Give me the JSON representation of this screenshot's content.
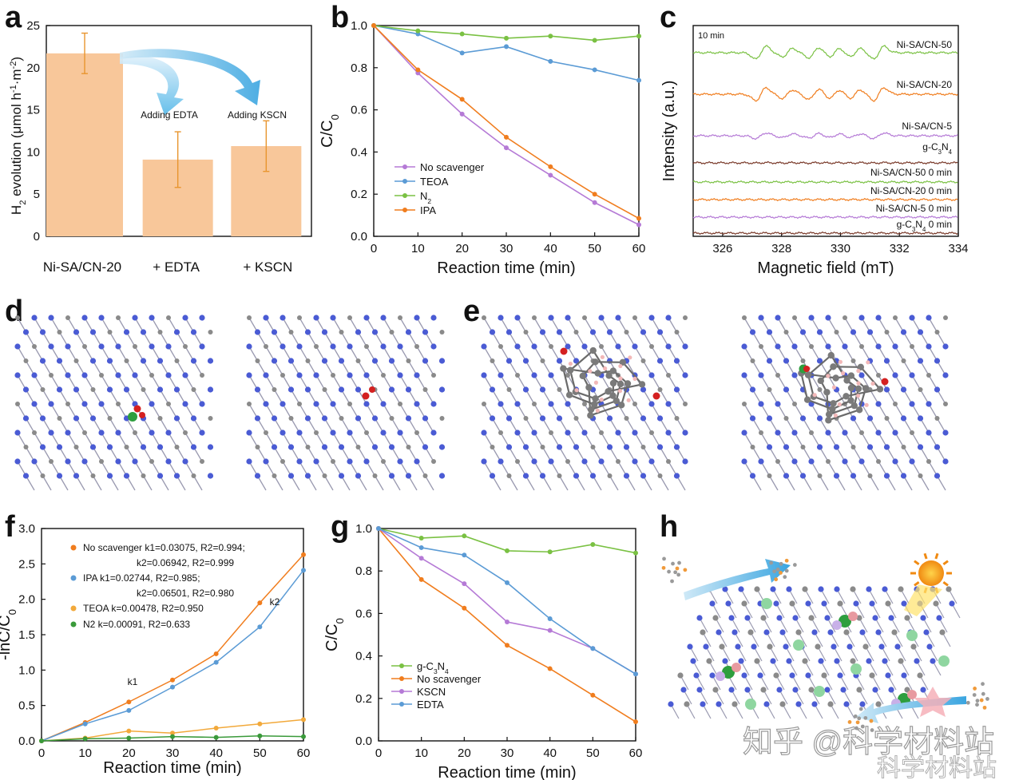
{
  "colors": {
    "bar": "#f8c79a",
    "errorbar": "#e8952e",
    "purple": "#b57ad6",
    "blue": "#5b9bd5",
    "green": "#7ac143",
    "orange": "#f07d1e",
    "gold": "#f2a93b",
    "darkgreen": "#3a9a3a",
    "carbon": "#8a8a8a",
    "nitrogen": "#4a5bd4",
    "oxygen": "#d42020",
    "nickel": "#2e9e3e",
    "hydrogen": "#f2b8b8",
    "brown": "#7a3a2a"
  },
  "panels": {
    "a": "a",
    "b": "b",
    "c": "c",
    "d": "d",
    "e": "e",
    "f": "f",
    "g": "g",
    "h": "h"
  },
  "watermark": {
    "primary": "知乎 @科学材料站",
    "secondary": "科学材料站"
  },
  "icons": [
    "arrow-icon",
    "sun-icon",
    "molecule-icon",
    "lattice-icon"
  ],
  "chart_data": [
    {
      "id": "a",
      "type": "bar",
      "categories": [
        "Ni-SA/CN-20",
        "+ EDTA",
        "+ KSCN"
      ],
      "values": [
        21.7,
        9.1,
        10.7
      ],
      "errors": [
        2.4,
        3.3,
        3.0
      ],
      "ylabel": "H2 evolution (μmol h-1·m-2)",
      "ylabel_main": "H",
      "ylabel_sub": "2",
      "ylabel_rest": " evolution (μmol h",
      "ylabel_sup1": "-1",
      "ylabel_mid": "·m",
      "ylabel_sup2": "-2",
      "ylabel_end": ")",
      "ylim": [
        0,
        25
      ],
      "yticks": [
        0,
        5,
        10,
        15,
        20,
        25
      ],
      "annotations": [
        "Adding EDTA",
        "Adding KSCN"
      ]
    },
    {
      "id": "b",
      "type": "line",
      "x": [
        0,
        10,
        20,
        30,
        40,
        50,
        60
      ],
      "xlabel": "Reaction time (min)",
      "ylabel": "C/C0",
      "ylabel_main": "C/C",
      "ylabel_sub": "0",
      "xlim": [
        0,
        60
      ],
      "ylim": [
        0.0,
        1.0
      ],
      "xticks": [
        0,
        10,
        20,
        30,
        40,
        50,
        60
      ],
      "yticks": [
        0.0,
        0.2,
        0.4,
        0.6,
        0.8,
        1.0
      ],
      "series": [
        {
          "name": "No scavenger",
          "key": "purple",
          "values": [
            1.0,
            0.775,
            0.58,
            0.42,
            0.29,
            0.16,
            0.055
          ]
        },
        {
          "name": "TEOA",
          "key": "blue",
          "values": [
            1.0,
            0.96,
            0.87,
            0.9,
            0.83,
            0.79,
            0.74
          ]
        },
        {
          "name": "N",
          "sub": "2",
          "key": "green",
          "values": [
            1.0,
            0.975,
            0.96,
            0.94,
            0.95,
            0.93,
            0.95
          ]
        },
        {
          "name": "IPA",
          "key": "orange",
          "values": [
            1.0,
            0.79,
            0.65,
            0.47,
            0.33,
            0.2,
            0.085
          ]
        }
      ]
    },
    {
      "id": "c",
      "type": "line",
      "xlabel": "Magnetic field (mT)",
      "ylabel": "Intensity (a.u.)",
      "xlim": [
        325,
        334
      ],
      "xticks": [
        326,
        328,
        330,
        332,
        334
      ],
      "time_label": "10 min",
      "peaks_mT": [
        327.3,
        328.2,
        329.1,
        329.8,
        330.5,
        331.3
      ],
      "traces": [
        {
          "label": "Ni-SA/CN-50",
          "key": "green",
          "amplitude": 1.0
        },
        {
          "label": "Ni-SA/CN-20",
          "key": "orange",
          "amplitude": 1.0
        },
        {
          "label": "Ni-SA/CN-5",
          "key": "purple",
          "amplitude": 0.6
        },
        {
          "label": "g-C",
          "sub": "3",
          "label_rest": "N",
          "sub2": "4",
          "key": "brown",
          "amplitude": 0.04
        },
        {
          "label": "Ni-SA/CN-50 0 min",
          "key": "green",
          "amplitude": 0.0
        },
        {
          "label": "Ni-SA/CN-20 0 min",
          "key": "orange",
          "amplitude": 0.0
        },
        {
          "label": "Ni-SA/CN-5 0 min",
          "key": "purple",
          "amplitude": 0.0
        },
        {
          "label": "g-C",
          "sub": "3",
          "label_rest": "N",
          "sub2": "4",
          "suffix": " 0 min",
          "key": "brown",
          "amplitude": 0.0
        }
      ]
    },
    {
      "id": "f",
      "type": "scatter",
      "x": [
        0,
        10,
        20,
        30,
        40,
        50,
        60
      ],
      "xlabel": "Reaction time (min)",
      "ylabel": "-lnC/C0",
      "ylabel_main": "-lnC/C",
      "ylabel_sub": "0",
      "xlim": [
        0,
        60
      ],
      "ylim": [
        0.0,
        3.0
      ],
      "xticks": [
        0,
        10,
        20,
        30,
        40,
        50,
        60
      ],
      "yticks": [
        0.0,
        0.5,
        1.0,
        1.5,
        2.0,
        2.5,
        3.0
      ],
      "series": [
        {
          "name": "No scavenger",
          "key": "orange",
          "values": [
            0.0,
            0.26,
            0.55,
            0.86,
            1.23,
            1.95,
            2.63
          ],
          "legend_line1": "No scavenger k1=0.03075, R2=0.994;",
          "legend_line2": "k2=0.06942, R2=0.999"
        },
        {
          "name": "IPA",
          "key": "blue",
          "values": [
            0.0,
            0.24,
            0.43,
            0.76,
            1.11,
            1.61,
            2.41
          ],
          "legend_line1": "IPA k1=0.02744, R2=0.985;",
          "legend_line2": "k2=0.06501, R2=0.980"
        },
        {
          "name": "TEOA",
          "key": "gold",
          "values": [
            0.0,
            0.04,
            0.14,
            0.11,
            0.18,
            0.24,
            0.3
          ],
          "legend_line1": "TEOA k=0.00478, R2=0.950"
        },
        {
          "name": "N2",
          "key": "darkgreen",
          "values": [
            0.0,
            0.03,
            0.04,
            0.06,
            0.05,
            0.07,
            0.06
          ],
          "legend_line1": "N2      k=0.00091, R2=0.633"
        }
      ],
      "annotations": [
        "k1",
        "k2"
      ]
    },
    {
      "id": "g",
      "type": "line",
      "x": [
        0,
        10,
        20,
        30,
        40,
        50,
        60
      ],
      "xlabel": "Reaction time (min)",
      "ylabel": "C/C0",
      "ylabel_main": "C/C",
      "ylabel_sub": "0",
      "xlim": [
        0,
        60
      ],
      "ylim": [
        0.0,
        1.0
      ],
      "xticks": [
        0,
        10,
        20,
        30,
        40,
        50,
        60
      ],
      "yticks": [
        0.0,
        0.2,
        0.4,
        0.6,
        0.8,
        1.0
      ],
      "series": [
        {
          "name": "g-C3N4",
          "key": "green",
          "values": [
            1.0,
            0.955,
            0.965,
            0.895,
            0.89,
            0.925,
            0.885
          ]
        },
        {
          "name": "No scavenger",
          "key": "orange",
          "values": [
            1.0,
            0.76,
            0.625,
            0.45,
            0.34,
            0.215,
            0.09
          ]
        },
        {
          "name": "KSCN",
          "key": "purple",
          "values": [
            1.0,
            0.86,
            0.74,
            0.56,
            0.52,
            0.435,
            0.315
          ]
        },
        {
          "name": "EDTA",
          "key": "blue",
          "values": [
            1.0,
            0.91,
            0.875,
            0.745,
            0.575,
            0.435,
            0.315
          ]
        }
      ]
    }
  ]
}
